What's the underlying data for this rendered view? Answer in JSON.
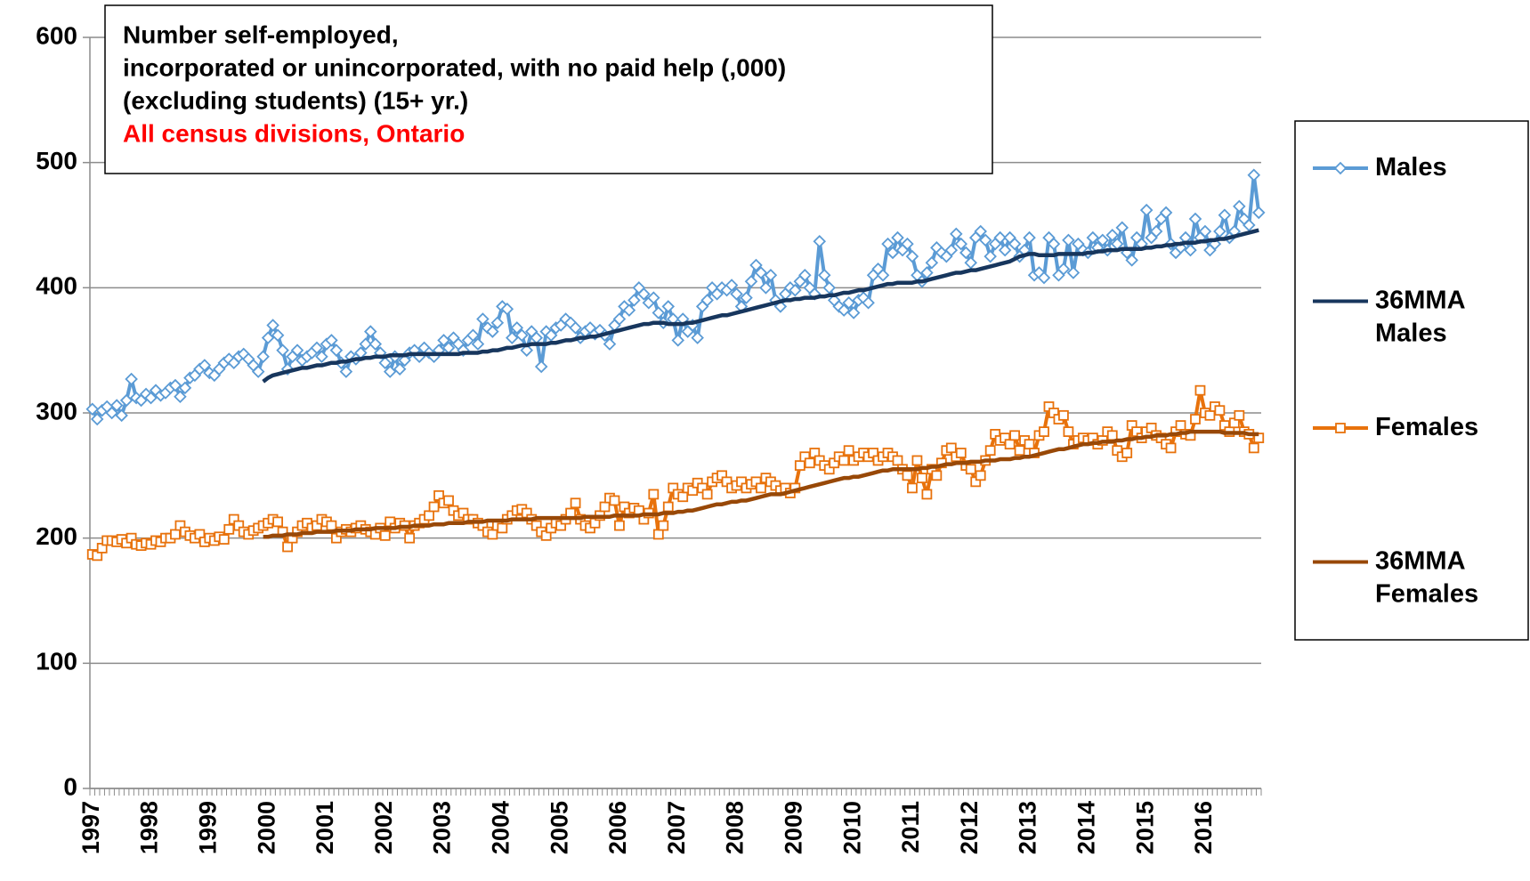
{
  "chart_data": {
    "type": "line",
    "title": [
      "Number self-employed,",
      "incorporated or unincorporated, with no paid help (,000)",
      "(excluding students) (15+ yr.)"
    ],
    "subtitle": "All census divisions, Ontario",
    "ylim": [
      0,
      600
    ],
    "yticks": [
      0,
      100,
      200,
      300,
      400,
      500,
      600
    ],
    "grid": true,
    "legend": "right",
    "categories": [
      "1997",
      null,
      null,
      null,
      null,
      null,
      null,
      null,
      null,
      null,
      null,
      null,
      "1998",
      null,
      null,
      null,
      null,
      null,
      null,
      null,
      null,
      null,
      null,
      null,
      "1999",
      null,
      null,
      null,
      null,
      null,
      null,
      null,
      null,
      null,
      null,
      null,
      "2000",
      null,
      null,
      null,
      null,
      null,
      null,
      null,
      null,
      null,
      null,
      null,
      "2001",
      null,
      null,
      null,
      null,
      null,
      null,
      null,
      null,
      null,
      null,
      null,
      "2002",
      null,
      null,
      null,
      null,
      null,
      null,
      null,
      null,
      null,
      null,
      null,
      "2003",
      null,
      null,
      null,
      null,
      null,
      null,
      null,
      null,
      null,
      null,
      null,
      "2004",
      null,
      null,
      null,
      null,
      null,
      null,
      null,
      null,
      null,
      null,
      null,
      "2005",
      null,
      null,
      null,
      null,
      null,
      null,
      null,
      null,
      null,
      null,
      null,
      "2006",
      null,
      null,
      null,
      null,
      null,
      null,
      null,
      null,
      null,
      null,
      null,
      "2007",
      null,
      null,
      null,
      null,
      null,
      null,
      null,
      null,
      null,
      null,
      null,
      "2008",
      null,
      null,
      null,
      null,
      null,
      null,
      null,
      null,
      null,
      null,
      null,
      "2009",
      null,
      null,
      null,
      null,
      null,
      null,
      null,
      null,
      null,
      null,
      null,
      "2010",
      null,
      null,
      null,
      null,
      null,
      null,
      null,
      null,
      null,
      null,
      null,
      "2011",
      null,
      null,
      null,
      null,
      null,
      null,
      null,
      null,
      null,
      null,
      null,
      "2012",
      null,
      null,
      null,
      null,
      null,
      null,
      null,
      null,
      null,
      null,
      null,
      "2013",
      null,
      null,
      null,
      null,
      null,
      null,
      null,
      null,
      null,
      null,
      null,
      "2014",
      null,
      null,
      null,
      null,
      null,
      null,
      null,
      null,
      null,
      null,
      null,
      "2015",
      null,
      null,
      null,
      null,
      null,
      null,
      null,
      null,
      null,
      null,
      null,
      "2016",
      null,
      null,
      null,
      null,
      null,
      null,
      null,
      null,
      null,
      null,
      null
    ],
    "series": [
      {
        "name": "Males",
        "color": "#5b9bd5",
        "marker": "diamond",
        "values": [
          303,
          295,
          302,
          305,
          300,
          306,
          298,
          310,
          327,
          312,
          310,
          315,
          312,
          318,
          314,
          316,
          320,
          322,
          313,
          320,
          328,
          330,
          335,
          338,
          332,
          330,
          335,
          340,
          343,
          340,
          345,
          347,
          343,
          338,
          333,
          345,
          360,
          370,
          362,
          350,
          335,
          345,
          350,
          342,
          345,
          348,
          352,
          345,
          355,
          358,
          350,
          340,
          333,
          345,
          343,
          348,
          355,
          365,
          355,
          348,
          340,
          333,
          345,
          335,
          342,
          348,
          350,
          345,
          352,
          348,
          345,
          350,
          358,
          352,
          360,
          355,
          350,
          358,
          362,
          355,
          375,
          368,
          365,
          372,
          385,
          383,
          360,
          368,
          362,
          350,
          365,
          360,
          337,
          365,
          362,
          368,
          370,
          375,
          372,
          368,
          360,
          365,
          368,
          363,
          366,
          362,
          355,
          370,
          375,
          385,
          382,
          390,
          400,
          395,
          388,
          392,
          380,
          372,
          385,
          375,
          358,
          375,
          365,
          370,
          360,
          385,
          390,
          400,
          395,
          400,
          398,
          402,
          395,
          385,
          392,
          405,
          418,
          412,
          400,
          410,
          390,
          385,
          395,
          400,
          398,
          405,
          410,
          400,
          395,
          437,
          410,
          400,
          390,
          385,
          382,
          388,
          380,
          390,
          392,
          388,
          410,
          415,
          410,
          435,
          428,
          440,
          430,
          435,
          425,
          410,
          405,
          412,
          420,
          432,
          428,
          425,
          430,
          443,
          435,
          428,
          420,
          440,
          445,
          438,
          425,
          435,
          440,
          430,
          440,
          435,
          425,
          430,
          440,
          410,
          412,
          408,
          440,
          435,
          410,
          415,
          438,
          412,
          435,
          430,
          428,
          440,
          432,
          438,
          430,
          442,
          435,
          448,
          428,
          422,
          440,
          435,
          462,
          440,
          445,
          455,
          460,
          435,
          428,
          432,
          440,
          430,
          455,
          440,
          445,
          430,
          435,
          445,
          458,
          440,
          445,
          465,
          455,
          450,
          490,
          460
        ]
      },
      {
        "name": "36MMA Males",
        "color": "#17365d",
        "values": [
          null,
          null,
          null,
          null,
          null,
          null,
          null,
          null,
          null,
          null,
          null,
          null,
          null,
          null,
          null,
          null,
          null,
          null,
          null,
          null,
          null,
          null,
          null,
          null,
          null,
          null,
          null,
          null,
          null,
          null,
          null,
          null,
          null,
          null,
          null,
          325,
          328,
          330,
          331,
          332,
          333,
          334,
          335,
          336,
          336,
          337,
          338,
          338,
          339,
          340,
          340,
          341,
          341,
          342,
          343,
          343,
          344,
          344,
          345,
          345,
          345,
          346,
          346,
          346,
          346,
          347,
          347,
          347,
          347,
          347,
          347,
          347,
          347,
          347,
          347,
          347,
          348,
          348,
          348,
          348,
          349,
          349,
          350,
          350,
          351,
          352,
          352,
          353,
          354,
          354,
          355,
          355,
          355,
          355,
          356,
          356,
          357,
          358,
          358,
          359,
          360,
          360,
          361,
          361,
          362,
          363,
          364,
          365,
          366,
          367,
          368,
          369,
          370,
          371,
          371,
          372,
          372,
          372,
          371,
          371,
          371,
          371,
          372,
          372,
          373,
          374,
          375,
          376,
          377,
          378,
          378,
          379,
          380,
          381,
          382,
          383,
          384,
          385,
          386,
          387,
          388,
          389,
          390,
          390,
          391,
          391,
          392,
          392,
          392,
          393,
          393,
          394,
          394,
          395,
          396,
          396,
          397,
          398,
          398,
          399,
          400,
          401,
          402,
          403,
          403,
          404,
          404,
          404,
          404,
          405,
          405,
          406,
          407,
          408,
          409,
          410,
          411,
          412,
          412,
          413,
          414,
          414,
          415,
          416,
          417,
          418,
          419,
          420,
          421,
          423,
          425,
          426,
          427,
          427,
          426,
          426,
          426,
          426,
          427,
          427,
          427,
          427,
          427,
          427,
          428,
          428,
          429,
          429,
          430,
          430,
          430,
          431,
          431,
          431,
          431,
          431,
          432,
          432,
          433,
          433,
          434,
          434,
          435,
          435,
          436,
          436,
          436,
          437,
          437,
          438,
          438,
          439,
          439,
          440,
          441,
          442,
          443,
          444,
          445,
          446
        ]
      },
      {
        "name": "Females",
        "color": "#e8720c",
        "marker": "square",
        "values": [
          187,
          186,
          192,
          198,
          198,
          197,
          199,
          196,
          200,
          195,
          194,
          196,
          195,
          198,
          197,
          200,
          200,
          203,
          210,
          205,
          202,
          200,
          203,
          197,
          200,
          198,
          201,
          199,
          207,
          215,
          210,
          205,
          203,
          206,
          208,
          210,
          212,
          215,
          213,
          205,
          193,
          200,
          205,
          210,
          212,
          208,
          210,
          215,
          213,
          210,
          200,
          205,
          207,
          205,
          208,
          210,
          207,
          205,
          203,
          208,
          202,
          213,
          208,
          212,
          210,
          200,
          210,
          212,
          215,
          218,
          225,
          234,
          228,
          230,
          222,
          218,
          220,
          215,
          215,
          212,
          210,
          205,
          203,
          210,
          208,
          215,
          218,
          222,
          223,
          220,
          215,
          210,
          205,
          202,
          208,
          212,
          210,
          215,
          220,
          228,
          215,
          210,
          208,
          212,
          218,
          225,
          232,
          230,
          210,
          225,
          220,
          224,
          222,
          215,
          220,
          235,
          203,
          210,
          225,
          240,
          235,
          233,
          240,
          238,
          244,
          240,
          235,
          245,
          248,
          250,
          245,
          240,
          242,
          245,
          240,
          243,
          245,
          240,
          248,
          245,
          242,
          238,
          240,
          236,
          240,
          258,
          265,
          260,
          268,
          262,
          258,
          255,
          260,
          265,
          262,
          270,
          262,
          265,
          268,
          265,
          268,
          262,
          265,
          268,
          265,
          262,
          255,
          250,
          240,
          262,
          248,
          235,
          255,
          250,
          260,
          270,
          272,
          265,
          268,
          258,
          255,
          245,
          250,
          262,
          270,
          283,
          278,
          280,
          275,
          282,
          270,
          278,
          275,
          268,
          282,
          285,
          305,
          300,
          295,
          298,
          285,
          275,
          278,
          280,
          278,
          280,
          275,
          278,
          285,
          282,
          270,
          265,
          268,
          290,
          285,
          280,
          285,
          288,
          282,
          280,
          275,
          272,
          285,
          290,
          283,
          282,
          295,
          318,
          300,
          298,
          305,
          302,
          290,
          285,
          292,
          298,
          285,
          283,
          272,
          280
        ]
      },
      {
        "name": "36MMA Females",
        "color": "#984807",
        "values": [
          null,
          null,
          null,
          null,
          null,
          null,
          null,
          null,
          null,
          null,
          null,
          null,
          null,
          null,
          null,
          null,
          null,
          null,
          null,
          null,
          null,
          null,
          null,
          null,
          null,
          null,
          null,
          null,
          null,
          null,
          null,
          null,
          null,
          null,
          null,
          201,
          201,
          202,
          202,
          202,
          203,
          203,
          203,
          204,
          204,
          204,
          205,
          205,
          205,
          205,
          206,
          206,
          206,
          206,
          207,
          207,
          207,
          207,
          208,
          208,
          208,
          208,
          208,
          209,
          209,
          209,
          210,
          210,
          210,
          210,
          211,
          211,
          211,
          212,
          212,
          212,
          212,
          213,
          213,
          213,
          213,
          214,
          214,
          214,
          214,
          214,
          215,
          215,
          215,
          215,
          215,
          216,
          216,
          216,
          216,
          216,
          216,
          216,
          216,
          216,
          216,
          217,
          217,
          217,
          217,
          217,
          217,
          218,
          218,
          218,
          218,
          218,
          218,
          219,
          219,
          219,
          219,
          220,
          220,
          220,
          221,
          221,
          222,
          222,
          223,
          224,
          225,
          226,
          227,
          227,
          228,
          229,
          229,
          230,
          230,
          231,
          232,
          233,
          234,
          235,
          235,
          235,
          236,
          237,
          238,
          239,
          240,
          241,
          242,
          243,
          244,
          245,
          246,
          247,
          248,
          248,
          249,
          249,
          250,
          251,
          252,
          253,
          254,
          254,
          255,
          255,
          255,
          255,
          255,
          255,
          256,
          256,
          257,
          257,
          258,
          259,
          259,
          260,
          260,
          260,
          261,
          261,
          261,
          262,
          262,
          262,
          263,
          263,
          263,
          264,
          264,
          265,
          265,
          266,
          267,
          268,
          269,
          270,
          271,
          271,
          272,
          273,
          274,
          275,
          275,
          276,
          276,
          277,
          277,
          277,
          278,
          278,
          279,
          279,
          280,
          280,
          281,
          281,
          282,
          282,
          282,
          283,
          283,
          284,
          284,
          285,
          285,
          285,
          285,
          285,
          285,
          285,
          284,
          284,
          284,
          284,
          284,
          283,
          283,
          283
        ]
      }
    ]
  }
}
